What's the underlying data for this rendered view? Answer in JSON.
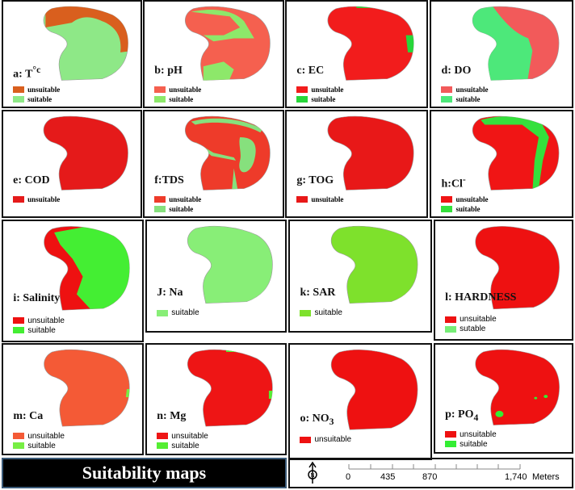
{
  "panels": [
    {
      "id": "a",
      "label": "a: T",
      "sup": "°c",
      "legend": [
        [
          "unsuitable",
          "#d95f1e"
        ],
        [
          "suitable",
          "#8ee887"
        ]
      ],
      "base": "#8ee887",
      "over": "#d95f1e",
      "style": "serif"
    },
    {
      "id": "b",
      "label": "b: pH",
      "legend": [
        [
          "unsuitable",
          "#f5604f"
        ],
        [
          "suitable",
          "#8de86a"
        ]
      ],
      "base": "#f5604f",
      "over": "#8de86a",
      "style": "serif"
    },
    {
      "id": "c",
      "label": "c: EC",
      "legend": [
        [
          "unsuitable",
          "#f21c1c"
        ],
        [
          "suitable",
          "#27d63a"
        ]
      ],
      "base": "#f21c1c",
      "over": "#27d63a",
      "style": "serif"
    },
    {
      "id": "d",
      "label": "d: DO",
      "legend": [
        [
          "unsuitable",
          "#f25a5a"
        ],
        [
          "suitable",
          "#4de87a"
        ]
      ],
      "base": "#f25a5a",
      "over": "#4de87a",
      "style": "serif"
    },
    {
      "id": "e",
      "label": "e: COD",
      "legend": [
        [
          "unsuitable",
          "#e51a1a"
        ]
      ],
      "base": "#e51a1a",
      "style": "serif"
    },
    {
      "id": "f",
      "label": "f:TDS",
      "legend": [
        [
          "unsuitable",
          "#ee3b2a"
        ],
        [
          "suitable",
          "#86e07d"
        ]
      ],
      "base": "#ee3b2a",
      "over": "#86e07d",
      "style": "serif"
    },
    {
      "id": "g",
      "label": "g: TOG",
      "legend": [
        [
          "unsuitable",
          "#e81818"
        ]
      ],
      "base": "#e81818",
      "style": "serif"
    },
    {
      "id": "h",
      "label": "h:Cl",
      "sup": "-",
      "legend": [
        [
          "unsuitable",
          "#f01515"
        ],
        [
          "suitable",
          "#35e03c"
        ]
      ],
      "base": "#f01515",
      "over": "#35e03c",
      "style": "serif"
    },
    {
      "id": "i",
      "label": "i: Salinity",
      "legend": [
        [
          "unsuitable",
          "#ee1111"
        ],
        [
          "suitable",
          "#44ee33"
        ]
      ],
      "base": "#ee1111",
      "over": "#44ee33",
      "style": "sans"
    },
    {
      "id": "j",
      "label": "J: Na",
      "legend": [
        [
          "suitable",
          "#88ee77"
        ]
      ],
      "base": "#88ee77",
      "style": "sans"
    },
    {
      "id": "k",
      "label": "k: SAR",
      "legend": [
        [
          "suitable",
          "#7ee12c"
        ]
      ],
      "base": "#7ee12c",
      "style": "sans"
    },
    {
      "id": "l",
      "label": "l: HARDNESS",
      "legend": [
        [
          "unsuitable",
          "#ee1111"
        ],
        [
          "sutable",
          "#77ee77"
        ]
      ],
      "base": "#ee1111",
      "style": "sans"
    },
    {
      "id": "m",
      "label": "m: Ca",
      "legend": [
        [
          "unsuitable",
          "#f45a36"
        ],
        [
          "suitable",
          "#77ee44"
        ]
      ],
      "base": "#f45a36",
      "over": "#77ee44",
      "style": "sans"
    },
    {
      "id": "n",
      "label": "n: Mg",
      "legend": [
        [
          "unsuitable",
          "#ee1515"
        ],
        [
          "suitable",
          "#55ee33"
        ]
      ],
      "base": "#ee1515",
      "over": "#55ee33",
      "style": "sans"
    },
    {
      "id": "o",
      "label": "o: NO",
      "sub": "3",
      "legend": [
        [
          "unsuitable",
          "#ee1111"
        ]
      ],
      "base": "#ee1111",
      "style": "sans"
    },
    {
      "id": "p",
      "label": "p: PO",
      "sub": "4",
      "legend": [
        [
          "unsuitable",
          "#ee1111"
        ],
        [
          "suitable",
          "#33ee33"
        ]
      ],
      "base": "#ee1111",
      "over": "#33ee33",
      "style": "sans"
    }
  ],
  "title": "Suitability maps",
  "scale": {
    "ticks": [
      "0",
      "435",
      "870",
      "1,740"
    ],
    "unit": "Meters",
    "north_icon": "north-arrow-icon"
  }
}
